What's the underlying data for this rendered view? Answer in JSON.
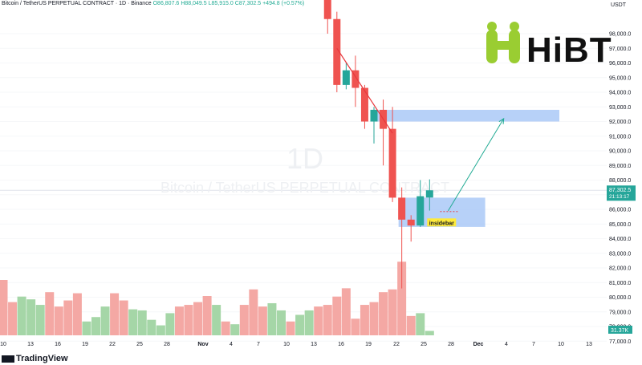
{
  "header": {
    "symbol": "Bitcoin / TetherUS PERPETUAL CONTRACT · 1D · Binance",
    "open": "O86,807.6",
    "high": "H88,049.5",
    "low": "L85,915.0",
    "close": "C87,302.5",
    "change": "+494.8 (+0.57%)"
  },
  "watermark": {
    "interval": "1D",
    "symbol": "Bitcoin / TetherUS PERPETUAL CONTRACT"
  },
  "brand": {
    "name": "HiBT"
  },
  "footer": {
    "logo": "TradingView"
  },
  "colors": {
    "up": "#26a69a",
    "down": "#ef5350",
    "vol_up": "#a5d6a7",
    "vol_down": "#f4a8a4",
    "zone": "#9fc2f5",
    "trendline": "#e8383d",
    "arrow": "#22ab94",
    "brand_green": "#9acd32"
  },
  "chart_data": {
    "type": "candlestick",
    "title": "",
    "ylabel": "USDT",
    "ylim": [
      76000,
      99000
    ],
    "y_ticks": [
      77000,
      78000,
      79000,
      80000,
      81000,
      82000,
      83000,
      84000,
      85000,
      86000,
      87000,
      88000,
      89000,
      90000,
      91000,
      92000,
      93000,
      94000,
      95000,
      96000,
      97000,
      98000
    ],
    "y_tick_labels": [
      "77,000.0",
      "78,000.0",
      "79,000.0",
      "80,000.0",
      "81,000.0",
      "82,000.0",
      "83,000.0",
      "84,000.0",
      "85,000.0",
      "86,000.0",
      "87,000.0",
      "88,000.0",
      "89,000.0",
      "90,000.0",
      "91,000.0",
      "92,000.0",
      "93,000.0",
      "94,000.0",
      "95,000.0",
      "96,000.0",
      "97,000.0",
      "98,000.0"
    ],
    "x_ticks": [
      "10",
      "13",
      "16",
      "19",
      "22",
      "25",
      "28",
      "Nov",
      "4",
      "7",
      "10",
      "13",
      "16",
      "19",
      "22",
      "25",
      "28",
      "Dec",
      "4",
      "7",
      "10",
      "13"
    ],
    "last_price": {
      "value": "87,302.5",
      "countdown": "21:13:17"
    },
    "last_volume": "31.37K",
    "candles": [
      {
        "date": "2025-11-13",
        "open": 101500,
        "high": 104000,
        "low": 98000,
        "close": 99000
      },
      {
        "date": "2025-11-14",
        "open": 99000,
        "high": 99500,
        "low": 94000,
        "close": 94500
      },
      {
        "date": "2025-11-15",
        "open": 94500,
        "high": 96000,
        "low": 94200,
        "close": 95500
      },
      {
        "date": "2025-11-16",
        "open": 95500,
        "high": 96500,
        "low": 93000,
        "close": 94300
      },
      {
        "date": "2025-11-17",
        "open": 94300,
        "high": 94500,
        "low": 91500,
        "close": 92000
      },
      {
        "date": "2025-11-18",
        "open": 92000,
        "high": 93000,
        "low": 90500,
        "close": 92800
      },
      {
        "date": "2025-11-19",
        "open": 92800,
        "high": 93500,
        "low": 89000,
        "close": 91500
      },
      {
        "date": "2025-11-20",
        "open": 91500,
        "high": 93000,
        "low": 86500,
        "close": 86800
      },
      {
        "date": "2025-11-21",
        "open": 86800,
        "high": 87500,
        "low": 80600,
        "close": 85300
      },
      {
        "date": "2025-11-22",
        "open": 85300,
        "high": 85600,
        "low": 83800,
        "close": 84900
      },
      {
        "date": "2025-11-23",
        "open": 84900,
        "high": 88000,
        "low": 84800,
        "close": 86900
      },
      {
        "date": "2025-11-24",
        "open": 86807.6,
        "high": 88049.5,
        "low": 85915.0,
        "close": 87302.5
      }
    ],
    "volume_bars": [
      {
        "x": "2025-10-09",
        "value": 100,
        "dir": "down"
      },
      {
        "x": "2025-10-10",
        "value": 60,
        "dir": "down"
      },
      {
        "x": "2025-10-11",
        "value": 70,
        "dir": "up"
      },
      {
        "x": "2025-10-12",
        "value": 65,
        "dir": "up"
      },
      {
        "x": "2025-10-13",
        "value": 55,
        "dir": "up"
      },
      {
        "x": "2025-10-14",
        "value": 78,
        "dir": "down"
      },
      {
        "x": "2025-10-15",
        "value": 52,
        "dir": "down"
      },
      {
        "x": "2025-10-16",
        "value": 63,
        "dir": "down"
      },
      {
        "x": "2025-10-17",
        "value": 76,
        "dir": "down"
      },
      {
        "x": "2025-10-18",
        "value": 25,
        "dir": "up"
      },
      {
        "x": "2025-10-19",
        "value": 33,
        "dir": "up"
      },
      {
        "x": "2025-10-20",
        "value": 52,
        "dir": "up"
      },
      {
        "x": "2025-10-21",
        "value": 76,
        "dir": "down"
      },
      {
        "x": "2025-10-22",
        "value": 63,
        "dir": "down"
      },
      {
        "x": "2025-10-23",
        "value": 47,
        "dir": "up"
      },
      {
        "x": "2025-10-24",
        "value": 45,
        "dir": "up"
      },
      {
        "x": "2025-10-25",
        "value": 28,
        "dir": "up"
      },
      {
        "x": "2025-10-26",
        "value": 18,
        "dir": "up"
      },
      {
        "x": "2025-10-27",
        "value": 40,
        "dir": "up"
      },
      {
        "x": "2025-10-28",
        "value": 52,
        "dir": "down"
      },
      {
        "x": "2025-10-29",
        "value": 55,
        "dir": "down"
      },
      {
        "x": "2025-10-30",
        "value": 60,
        "dir": "down"
      },
      {
        "x": "2025-10-31",
        "value": 71,
        "dir": "down"
      },
      {
        "x": "2025-11-01",
        "value": 55,
        "dir": "up"
      },
      {
        "x": "2025-11-02",
        "value": 25,
        "dir": "down"
      },
      {
        "x": "2025-11-03",
        "value": 20,
        "dir": "up"
      },
      {
        "x": "2025-11-04",
        "value": 55,
        "dir": "down"
      },
      {
        "x": "2025-11-05",
        "value": 83,
        "dir": "down"
      },
      {
        "x": "2025-11-06",
        "value": 52,
        "dir": "down"
      },
      {
        "x": "2025-11-07",
        "value": 58,
        "dir": "up"
      },
      {
        "x": "2025-11-08",
        "value": 45,
        "dir": "up"
      },
      {
        "x": "2025-11-09",
        "value": 25,
        "dir": "down"
      },
      {
        "x": "2025-11-10",
        "value": 37,
        "dir": "up"
      },
      {
        "x": "2025-11-11",
        "value": 45,
        "dir": "up"
      },
      {
        "x": "2025-11-12",
        "value": 52,
        "dir": "down"
      },
      {
        "x": "2025-11-13",
        "value": 55,
        "dir": "down"
      },
      {
        "x": "2025-11-14",
        "value": 70,
        "dir": "down"
      },
      {
        "x": "2025-11-15",
        "value": 85,
        "dir": "down"
      },
      {
        "x": "2025-11-16",
        "value": 30,
        "dir": "down"
      },
      {
        "x": "2025-11-17",
        "value": 55,
        "dir": "down"
      },
      {
        "x": "2025-11-18",
        "value": 60,
        "dir": "down"
      },
      {
        "x": "2025-11-19",
        "value": 78,
        "dir": "down"
      },
      {
        "x": "2025-11-20",
        "value": 83,
        "dir": "down"
      },
      {
        "x": "2025-11-21",
        "value": 133,
        "dir": "down"
      },
      {
        "x": "2025-11-22",
        "value": 35,
        "dir": "down"
      },
      {
        "x": "2025-11-23",
        "value": 40,
        "dir": "up"
      },
      {
        "x": "2025-11-24",
        "value": 8,
        "dir": "up"
      }
    ],
    "annotations": [
      {
        "type": "zone",
        "label": "",
        "y_range": [
          92000,
          92800
        ],
        "x_range": [
          "2025-11-18",
          "2025-12-08"
        ]
      },
      {
        "type": "zone",
        "label": "",
        "y_range": [
          84800,
          86800
        ],
        "x_range": [
          "2025-11-21",
          "2025-11-30"
        ]
      },
      {
        "type": "trendline",
        "from": {
          "x": "2025-11-14",
          "y": 97000
        },
        "to": {
          "x": "2025-11-20",
          "y": 91200
        }
      },
      {
        "type": "arrow",
        "from": {
          "x": "2025-11-26",
          "y": 85900
        },
        "to": {
          "x": "2025-12-02",
          "y": 92200
        }
      },
      {
        "type": "label",
        "text": "insidebar",
        "x": "2025-11-24",
        "y": 85000
      }
    ]
  }
}
